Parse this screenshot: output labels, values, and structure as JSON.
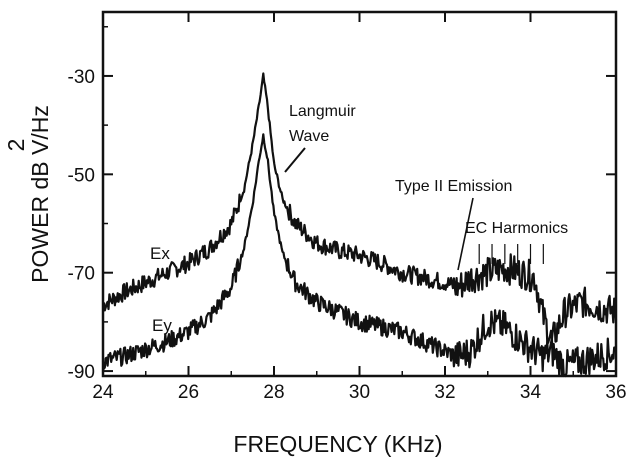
{
  "chart_data": {
    "type": "line",
    "title": "",
    "xlabel": "FREQUENCY (KHz)",
    "ylabel_main": "POWER dB V/Hz",
    "ylabel_superscript": "2",
    "xlim": [
      24,
      36
    ],
    "ylim": [
      -91,
      -17
    ],
    "x_ticks": [
      24,
      26,
      28,
      30,
      32,
      34,
      36
    ],
    "x_tick_labels": [
      "24",
      "26",
      "28",
      "30",
      "32",
      "34",
      "36"
    ],
    "y_ticks": [
      -30,
      -50,
      -70,
      -90
    ],
    "y_tick_labels": [
      "-30",
      "-50",
      "-70",
      "-90"
    ],
    "grid": false,
    "series": [
      {
        "name": "Ex",
        "x": [
          24.0,
          24.5,
          25.0,
          25.5,
          26.0,
          26.5,
          27.0,
          27.3,
          27.5,
          27.65,
          27.75,
          27.85,
          28.0,
          28.2,
          28.5,
          29.0,
          29.5,
          30.0,
          30.5,
          31.0,
          31.5,
          32.0,
          32.3,
          32.6,
          33.0,
          33.4,
          33.8,
          34.1,
          34.3,
          34.5,
          34.8,
          35.2,
          35.6,
          36.0
        ],
        "y": [
          -76.5,
          -74,
          -72,
          -70,
          -68,
          -65,
          -60,
          -53,
          -44,
          -36,
          -30,
          -36,
          -48,
          -55,
          -60,
          -64,
          -65.5,
          -66.5,
          -68,
          -70,
          -71,
          -72,
          -73,
          -71,
          -70,
          -69,
          -70,
          -71,
          -79,
          -84,
          -78,
          -76,
          -77,
          -78
        ]
      },
      {
        "name": "Ey",
        "x": [
          24.0,
          24.5,
          25.0,
          25.5,
          26.0,
          26.5,
          27.0,
          27.3,
          27.5,
          27.65,
          27.75,
          27.85,
          28.0,
          28.2,
          28.5,
          29.0,
          29.5,
          30.0,
          30.5,
          31.0,
          31.5,
          32.0,
          32.3,
          32.6,
          33.0,
          33.4,
          33.8,
          34.1,
          34.3,
          34.5,
          34.8,
          35.2,
          35.6,
          36.0
        ],
        "y": [
          -88,
          -87,
          -85.5,
          -84,
          -82,
          -79,
          -73,
          -65,
          -56,
          -47,
          -42,
          -47,
          -58,
          -66,
          -72,
          -76,
          -78,
          -80,
          -81,
          -82,
          -84,
          -86,
          -87,
          -86,
          -80,
          -81,
          -84,
          -86,
          -87,
          -86,
          -89,
          -88,
          -87,
          -86
        ]
      }
    ],
    "annotations": {
      "langmuir_line1": "Langmuir",
      "langmuir_line2": "Wave",
      "type2": "Type II Emission",
      "ec": "EC Harmonics",
      "ec_tick_x": [
        32.8,
        33.1,
        33.4,
        33.7,
        34.0,
        34.3
      ]
    }
  }
}
